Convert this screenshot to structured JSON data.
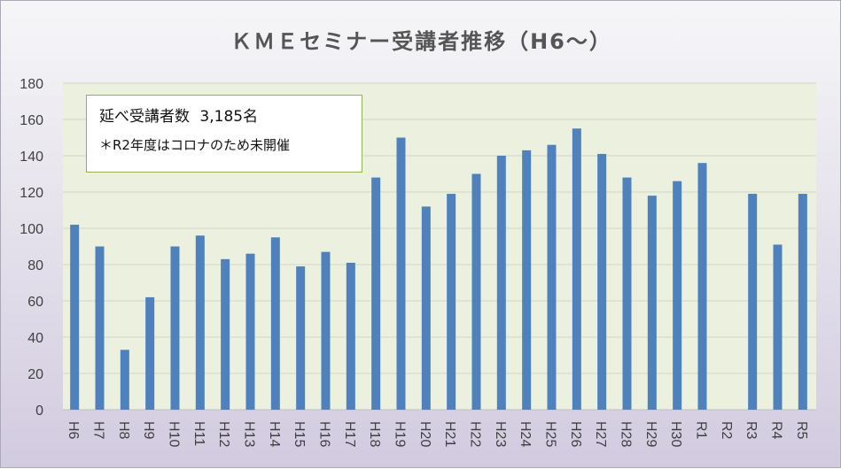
{
  "chart_data": {
    "type": "bar",
    "title": "ＫＭＥセミナー受講者推移（H6～）",
    "categories": [
      "H6",
      "H7",
      "H8",
      "H9",
      "H10",
      "H11",
      "H12",
      "H13",
      "H14",
      "H15",
      "H16",
      "H17",
      "H18",
      "H19",
      "H20",
      "H21",
      "H22",
      "H23",
      "H24",
      "H25",
      "H26",
      "H27",
      "H28",
      "H29",
      "H30",
      "R1",
      "R2",
      "R3",
      "R4",
      "R5"
    ],
    "values": [
      102,
      90,
      33,
      62,
      90,
      96,
      83,
      86,
      95,
      79,
      87,
      81,
      128,
      150,
      112,
      119,
      130,
      140,
      143,
      146,
      155,
      141,
      128,
      118,
      126,
      136,
      null,
      119,
      91,
      119
    ],
    "ylim": [
      0,
      180
    ],
    "yticks": [
      0,
      20,
      40,
      60,
      80,
      100,
      120,
      140,
      160,
      180
    ],
    "grid": true,
    "legend": "none",
    "colors": {
      "bar": "#4f81bd",
      "plot_background": "#ebf1de",
      "gridline": "#d0d6c4",
      "note_border": "#8fb455"
    },
    "annotation": {
      "total_label": "延べ受講者数",
      "total_value": "3,185名",
      "note": "＊R2年度はコロナのため未開催"
    }
  }
}
